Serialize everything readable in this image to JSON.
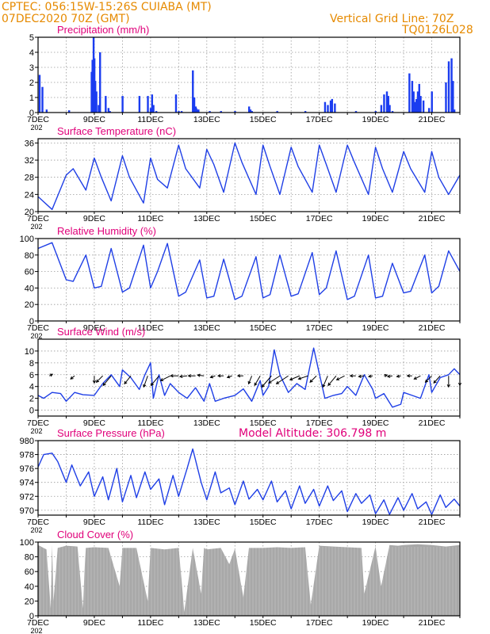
{
  "header": {
    "line1": "CPTEC:  056:15W-15:26S  CUIABA (MT)",
    "line2": "07DEC2020 70Z (GMT)",
    "grid_note": "Vertical Grid Line: 70Z",
    "code": "TQ0126L028",
    "model_altitude": "Model Altitude: 306.798 m"
  },
  "colors": {
    "header": "#e68a00",
    "title": "#e0007a",
    "line": "#1f3fe6",
    "bar": "#1a3cf0",
    "cloud": "#a8a8a8",
    "frame": "#000000"
  },
  "x_axis": {
    "start_day": 7,
    "end_day": 22,
    "tick_labels": [
      "7DEC",
      "9DEC",
      "11DEC",
      "13DEC",
      "15DEC",
      "17DEC",
      "19DEC",
      "21DEC"
    ],
    "tick_days": [
      7,
      9,
      11,
      13,
      15,
      17,
      19,
      21
    ],
    "year_fragment": "202"
  },
  "chart_data": [
    {
      "type": "bar",
      "title": "Precipitation (mm/h)",
      "ylim": [
        0,
        5
      ],
      "yticks": [
        0,
        1,
        2,
        3,
        4,
        5
      ],
      "grid": true,
      "x": [
        7.05,
        7.15,
        7.3,
        8.1,
        8.9,
        8.93,
        8.97,
        9.0,
        9.03,
        9.07,
        9.15,
        9.2,
        9.4,
        9.5,
        9.55,
        10.0,
        10.6,
        10.9,
        11.0,
        11.05,
        11.1,
        11.2,
        11.9,
        12.0,
        12.1,
        12.5,
        12.55,
        12.6,
        12.62,
        12.66,
        12.7,
        13.1,
        13.5,
        14.0,
        14.5,
        14.55,
        14.6,
        15.5,
        16.5,
        17.2,
        17.3,
        17.4,
        17.45,
        17.55,
        18.3,
        19.0,
        19.2,
        19.3,
        19.4,
        19.45,
        19.5,
        19.6,
        20.2,
        20.3,
        20.35,
        20.4,
        20.45,
        20.5,
        20.55,
        20.6,
        20.7,
        20.9,
        21.0,
        21.5,
        21.6,
        21.7,
        21.75,
        21.8
      ],
      "values": [
        2.5,
        1.7,
        0.2,
        0.15,
        2.7,
        3.5,
        5.0,
        3.6,
        2.1,
        1.4,
        0.5,
        4.0,
        1.1,
        0.3,
        0.1,
        1.1,
        1.1,
        1.1,
        0.3,
        1.2,
        0.5,
        0.1,
        1.2,
        0.1,
        0.1,
        2.8,
        1.0,
        0.4,
        0.3,
        0.2,
        0.2,
        0.1,
        0.1,
        0.1,
        0.4,
        0.2,
        0.1,
        0.1,
        0.1,
        0.7,
        0.5,
        0.8,
        0.9,
        0.6,
        0.1,
        0.1,
        0.5,
        1.2,
        1.4,
        1.1,
        0.5,
        0.1,
        2.6,
        2.1,
        1.4,
        0.7,
        0.9,
        1.4,
        1.9,
        1.1,
        0.8,
        0.3,
        1.4,
        2.0,
        3.4,
        3.6,
        2.1,
        0.2
      ]
    },
    {
      "type": "line",
      "title": "Surface Temperature (nC)",
      "ylim": [
        20,
        37
      ],
      "yticks": [
        20,
        24,
        28,
        32,
        36
      ],
      "grid": true,
      "x": [
        7.0,
        7.5,
        8.0,
        8.25,
        8.7,
        9.0,
        9.25,
        9.6,
        10.0,
        10.25,
        10.75,
        11.0,
        11.25,
        11.6,
        12.0,
        12.25,
        12.75,
        13.0,
        13.25,
        13.6,
        14.0,
        14.25,
        14.75,
        15.0,
        15.25,
        15.6,
        16.0,
        16.25,
        16.75,
        17.0,
        17.25,
        17.6,
        18.0,
        18.25,
        18.75,
        19.0,
        19.25,
        19.6,
        20.0,
        20.25,
        20.75,
        21.0,
        21.25,
        21.6,
        22.0
      ],
      "y": [
        23.5,
        20.5,
        28.5,
        30.0,
        25.0,
        32.5,
        28.0,
        22.5,
        33.0,
        28.0,
        22.0,
        32.5,
        27.5,
        25.5,
        35.5,
        30.0,
        25.5,
        34.5,
        31.0,
        24.5,
        36.0,
        31.5,
        24.0,
        35.5,
        30.5,
        24.0,
        35.0,
        30.5,
        24.5,
        35.5,
        31.0,
        24.5,
        35.5,
        31.5,
        24.0,
        35.0,
        30.0,
        24.5,
        34.0,
        30.0,
        24.5,
        34.0,
        28.0,
        24.0,
        28.5
      ]
    },
    {
      "type": "line",
      "title": "Relative Humidity (%)",
      "ylim": [
        0,
        100
      ],
      "yticks": [
        0,
        20,
        40,
        60,
        80,
        100
      ],
      "grid": true,
      "x": [
        7.0,
        7.5,
        8.0,
        8.25,
        8.7,
        9.0,
        9.25,
        9.6,
        10.0,
        10.25,
        10.75,
        11.0,
        11.25,
        11.6,
        12.0,
        12.25,
        12.75,
        13.0,
        13.25,
        13.6,
        14.0,
        14.25,
        14.75,
        15.0,
        15.25,
        15.6,
        16.0,
        16.25,
        16.75,
        17.0,
        17.25,
        17.6,
        18.0,
        18.25,
        18.75,
        19.0,
        19.25,
        19.6,
        20.0,
        20.25,
        20.75,
        21.0,
        21.25,
        21.6,
        22.0
      ],
      "y": [
        88,
        95,
        50,
        48,
        80,
        40,
        42,
        88,
        35,
        40,
        92,
        40,
        60,
        94,
        30,
        35,
        74,
        28,
        30,
        75,
        26,
        30,
        78,
        28,
        32,
        80,
        30,
        33,
        83,
        32,
        40,
        85,
        26,
        30,
        80,
        28,
        30,
        70,
        34,
        36,
        80,
        34,
        42,
        85,
        60
      ]
    },
    {
      "type": "line",
      "title": "Surface Wind (m/s)",
      "ylim": [
        -1,
        12
      ],
      "yticks": [
        0,
        2,
        4,
        6,
        8,
        10
      ],
      "grid": true,
      "x": [
        7.0,
        7.2,
        7.5,
        7.8,
        8.0,
        8.3,
        8.6,
        9.0,
        9.3,
        9.6,
        9.9,
        10.0,
        10.3,
        10.6,
        10.8,
        11.0,
        11.1,
        11.3,
        11.5,
        11.7,
        12.0,
        12.3,
        12.6,
        12.9,
        13.1,
        13.3,
        13.6,
        14.0,
        14.3,
        14.6,
        14.9,
        15.0,
        15.2,
        15.4,
        15.6,
        15.9,
        16.2,
        16.5,
        16.8,
        17.0,
        17.2,
        17.5,
        17.8,
        18.0,
        18.3,
        18.6,
        18.9,
        19.0,
        19.3,
        19.6,
        19.9,
        20.0,
        20.3,
        20.6,
        20.9,
        21.0,
        21.3,
        21.6,
        21.8,
        22.0
      ],
      "y": [
        2.5,
        2.0,
        3.0,
        2.8,
        1.5,
        3.0,
        2.6,
        2.5,
        4.5,
        6.0,
        4.0,
        6.8,
        5.5,
        3.5,
        6.0,
        8.0,
        2.0,
        6.0,
        2.5,
        4.5,
        3.0,
        2.0,
        3.8,
        1.5,
        4.5,
        1.5,
        2.0,
        2.5,
        3.6,
        1.5,
        5.0,
        2.5,
        4.0,
        10.2,
        6.0,
        3.0,
        4.5,
        3.5,
        10.5,
        6.2,
        2.0,
        2.5,
        2.8,
        4.0,
        2.5,
        6.0,
        3.5,
        2.0,
        2.8,
        0.5,
        1.0,
        3.0,
        2.5,
        2.0,
        6.0,
        3.0,
        5.5,
        6.0,
        7.0,
        6.0
      ],
      "vector_y": 5.8,
      "vectors": [
        [
          7.4,
          4,
          2
        ],
        [
          8.3,
          -5,
          -4
        ],
        [
          9.0,
          0,
          -9
        ],
        [
          9.3,
          -8,
          -8
        ],
        [
          9.6,
          -10,
          -12
        ],
        [
          10.3,
          -8,
          -10
        ],
        [
          10.9,
          -5,
          -14
        ],
        [
          11.3,
          -10,
          -12
        ],
        [
          11.7,
          -12,
          -6
        ],
        [
          12.0,
          -10,
          0
        ],
        [
          12.3,
          -9,
          -1
        ],
        [
          12.6,
          -9,
          0
        ],
        [
          12.9,
          -8,
          1
        ],
        [
          13.3,
          -6,
          -2
        ],
        [
          13.6,
          -7,
          0
        ],
        [
          13.9,
          -6,
          -2
        ],
        [
          14.3,
          -7,
          0
        ],
        [
          14.6,
          -4,
          -10
        ],
        [
          14.9,
          -7,
          -12
        ],
        [
          15.3,
          -12,
          -14
        ],
        [
          15.6,
          -14,
          -9
        ],
        [
          15.9,
          -15,
          -10
        ],
        [
          16.3,
          -12,
          -5
        ],
        [
          16.6,
          -12,
          -4
        ],
        [
          16.9,
          -8,
          -8
        ],
        [
          17.3,
          -6,
          -14
        ],
        [
          17.6,
          -10,
          -12
        ],
        [
          17.9,
          -10,
          -5
        ],
        [
          18.3,
          -7,
          0
        ],
        [
          18.6,
          -7,
          -1
        ],
        [
          18.9,
          -5,
          -1
        ],
        [
          19.3,
          4,
          1
        ],
        [
          19.6,
          -6,
          -1
        ],
        [
          19.9,
          -5,
          -1
        ],
        [
          20.3,
          -6,
          0
        ],
        [
          20.6,
          -8,
          -4
        ],
        [
          21.0,
          -8,
          -8
        ],
        [
          21.3,
          -8,
          -9
        ],
        [
          21.6,
          0,
          -14
        ],
        [
          22.0,
          0,
          -12
        ]
      ]
    },
    {
      "type": "line",
      "title": "Surface Pressure (hPa)",
      "ylim": [
        969.3,
        980
      ],
      "yticks": [
        970,
        972,
        974,
        976,
        978,
        980
      ],
      "grid": true,
      "x": [
        7.0,
        7.2,
        7.5,
        7.7,
        8.0,
        8.2,
        8.5,
        8.8,
        9.0,
        9.3,
        9.5,
        9.8,
        10.0,
        10.3,
        10.5,
        10.8,
        11.0,
        11.3,
        11.5,
        11.8,
        12.0,
        12.3,
        12.5,
        12.8,
        13.0,
        13.3,
        13.5,
        13.8,
        14.0,
        14.3,
        14.5,
        14.8,
        15.0,
        15.3,
        15.5,
        15.8,
        16.0,
        16.3,
        16.5,
        16.8,
        17.0,
        17.3,
        17.5,
        17.8,
        18.0,
        18.3,
        18.5,
        18.8,
        19.0,
        19.3,
        19.5,
        19.8,
        20.0,
        20.3,
        20.5,
        20.8,
        21.0,
        21.3,
        21.5,
        21.8,
        22.0
      ],
      "y": [
        976.2,
        978.0,
        978.2,
        977.0,
        974.0,
        976.5,
        973.5,
        975.5,
        972.0,
        974.8,
        971.5,
        976.0,
        971.2,
        975.0,
        971.8,
        975.5,
        973.0,
        974.5,
        970.8,
        975.0,
        972.0,
        976.0,
        978.8,
        974.0,
        971.5,
        975.5,
        972.5,
        973.2,
        970.8,
        974.2,
        971.6,
        973.0,
        971.5,
        974.2,
        971.2,
        972.8,
        970.2,
        973.5,
        971.0,
        973.0,
        970.6,
        973.5,
        971.4,
        972.8,
        969.8,
        972.4,
        971.0,
        972.2,
        969.5,
        971.5,
        969.4,
        971.8,
        970.0,
        972.4,
        970.2,
        971.2,
        969.4,
        972.2,
        970.4,
        971.6,
        970.6
      ]
    },
    {
      "type": "area",
      "title": "Cloud Cover (%)",
      "ylim": [
        0,
        100
      ],
      "yticks": [
        0,
        20,
        40,
        60,
        80,
        100
      ],
      "grid": true,
      "x": [
        7.0,
        7.3,
        7.45,
        7.5,
        7.55,
        7.7,
        8.0,
        8.4,
        8.6,
        8.65,
        8.7,
        9.0,
        9.5,
        9.9,
        10.0,
        10.5,
        10.9,
        11.0,
        11.5,
        12.0,
        12.1,
        12.2,
        12.5,
        12.8,
        12.9,
        13.0,
        13.5,
        13.8,
        14.0,
        14.3,
        14.5,
        15.0,
        15.5,
        16.0,
        16.5,
        16.7,
        17.0,
        17.5,
        18.0,
        18.5,
        18.6,
        19.0,
        19.2,
        19.5,
        19.8,
        20.0,
        20.5,
        21.0,
        21.5,
        22.0
      ],
      "y": [
        96,
        90,
        10,
        96,
        20,
        92,
        95,
        94,
        10,
        60,
        92,
        93,
        92,
        40,
        92,
        92,
        20,
        92,
        90,
        92,
        50,
        5,
        92,
        30,
        92,
        90,
        92,
        70,
        91,
        25,
        92,
        92,
        93,
        92,
        93,
        15,
        95,
        94,
        93,
        92,
        30,
        94,
        40,
        96,
        95,
        96,
        97,
        96,
        94,
        96
      ]
    }
  ]
}
